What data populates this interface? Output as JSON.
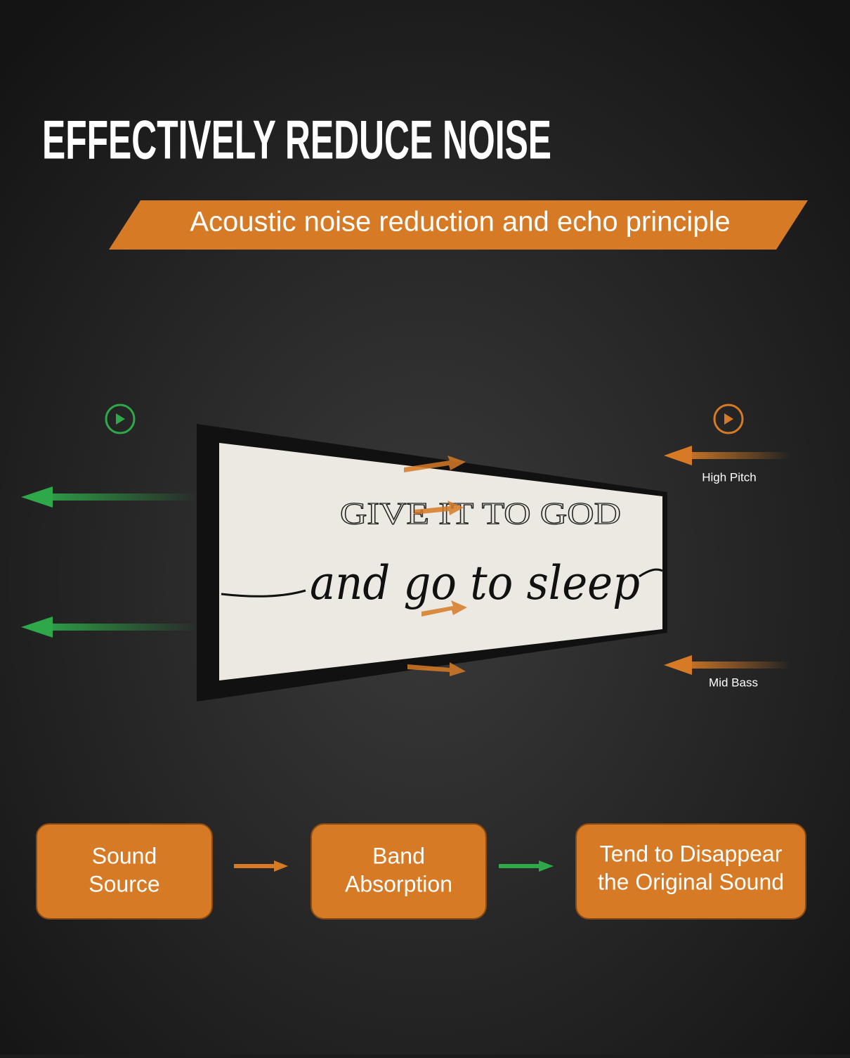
{
  "header": {
    "title": "EFFECTIVELY REDUCE NOISE",
    "banner": "Acoustic noise reduction and echo principle"
  },
  "sign": {
    "line1": "GIVE IT TO GOD",
    "line2": "and go to sleep"
  },
  "labels": {
    "high_pitch": "High Pitch",
    "mid_bass": "Mid Bass"
  },
  "flow": [
    {
      "lines": [
        "Sound",
        "Source"
      ]
    },
    {
      "lines": [
        "Band",
        "Absorption"
      ]
    },
    {
      "lines": [
        "Tend to Disappear",
        "the Original Sound"
      ]
    }
  ]
}
